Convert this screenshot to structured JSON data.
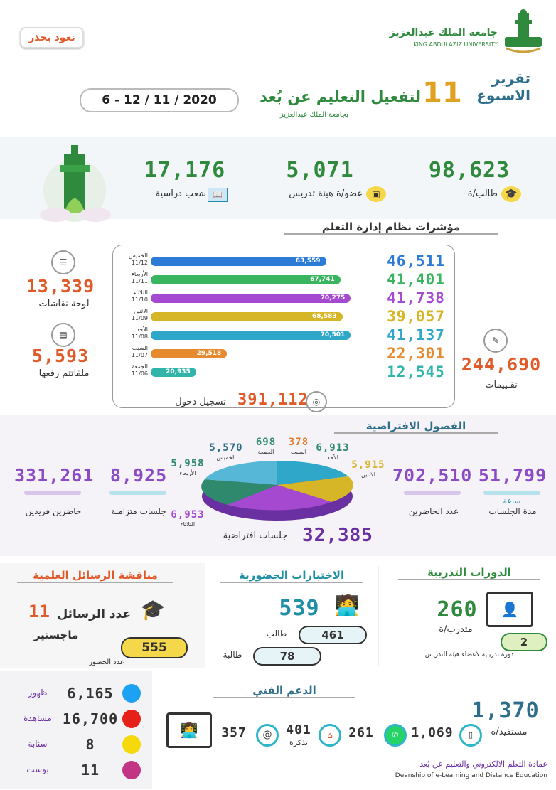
{
  "header": {
    "logo_ar": "جامعة الملك عبدالعزيز",
    "logo_en": "KING ABDULAZIZ UNIVERSITY",
    "slogan": "نعود بحذر"
  },
  "title": {
    "report": "تقرير",
    "week": "الاسبوع",
    "num": "11",
    "subject": "لتفعيل التعليم عن بُعد",
    "sub": "بجامعة الملك عبدالعزيز",
    "date": "6 - 12 / 11 / 2020"
  },
  "top_stats": [
    {
      "value": "98,623",
      "label": "طالب/ة",
      "icon": "graduation-cap-icon"
    },
    {
      "value": "5,071",
      "label": "عضو/ة هيئة تدريس",
      "icon": "teacher-board-icon"
    },
    {
      "value": "17,176",
      "label": "شعب دراسية",
      "icon": "book-icon"
    }
  ],
  "lms": {
    "title": "مؤشرات نظام إدارة التعلم",
    "rows": [
      {
        "day": "الخميس",
        "date": "11/12",
        "bar": "63,559",
        "right": "46,511",
        "color": "#2c7bd6",
        "frac": 0.85
      },
      {
        "day": "الأربعاء",
        "date": "11/11",
        "bar": "67,741",
        "right": "41,401",
        "color": "#38b55e",
        "frac": 0.92
      },
      {
        "day": "الثلاثاء",
        "date": "11/10",
        "bar": "70,275",
        "right": "41,738",
        "color": "#a54ad0",
        "frac": 0.97
      },
      {
        "day": "الاثنين",
        "date": "11/09",
        "bar": "68,583",
        "right": "39,057",
        "color": "#d6b526",
        "frac": 0.93
      },
      {
        "day": "الأحد",
        "date": "11/08",
        "bar": "70,501",
        "right": "41,137",
        "color": "#2fa7c9",
        "frac": 0.97
      },
      {
        "day": "السبت",
        "date": "11/07",
        "bar": "29,518",
        "right": "22,301",
        "color": "#e58a2f",
        "frac": 0.37
      },
      {
        "day": "الجمعة",
        "date": "11/06",
        "bar": "20,935",
        "right": "12,545",
        "color": "#31b5a8",
        "frac": 0.22
      }
    ],
    "login_value": "391,112",
    "login_label": "تسجيل دخول",
    "ratings_value": "244,690",
    "ratings_label": "تقـييمات",
    "boards_value": "13,339",
    "boards_label": "لوحة نقاشات",
    "files_value": "5,593",
    "files_label": "ملفاتتم رفعها"
  },
  "virtual": {
    "title": "الفصول الافتراضية",
    "sessions_total": "32,385",
    "sessions_label": "جلسات افتراضية",
    "duration_value": "51,799",
    "duration_unit": "ساعة",
    "duration_label": "مدة الجلسات",
    "attendees_value": "702,510",
    "attendees_label": "عدد الحاضرين",
    "sync_value": "8,925",
    "sync_label": "جلسات متزامنة",
    "unique_value": "331,261",
    "unique_label": "حاضرين فريدين",
    "days": [
      {
        "day": "الاثنين",
        "value": "5,915"
      },
      {
        "day": "الأحد",
        "value": "6,913"
      },
      {
        "day": "السبت",
        "value": "378"
      },
      {
        "day": "الجمعة",
        "value": "698"
      },
      {
        "day": "الخميس",
        "value": "5,570"
      },
      {
        "day": "الأربعاء",
        "value": "5,958"
      },
      {
        "day": "الثلاثاء",
        "value": "6,953"
      }
    ]
  },
  "training": {
    "title": "الدورات التدريبة",
    "value": "260",
    "label": "متدرب/ة",
    "courses": "2",
    "courses_label": "دورة تدريبية لاعضاء هيئة التدريس"
  },
  "exams": {
    "title": "الاختبارات الحضورية",
    "value": "539",
    "male": "461",
    "male_label": "طالب",
    "female": "78",
    "female_label": "طالبة"
  },
  "thesis": {
    "title": "مناقشة الرسائل العلمية",
    "count_label": "عدد الرسائل",
    "count": "11",
    "type": "ماجستير",
    "attend": "555",
    "attend_label": "عدد الحضور"
  },
  "social": [
    {
      "value": "6,165",
      "label": "ظهور",
      "icon": "twitter-icon",
      "color": "#1da1f2"
    },
    {
      "value": "16,700",
      "label": "مشاهدة",
      "icon": "youtube-icon",
      "color": "#e62117"
    },
    {
      "value": "8",
      "label": "سنابة",
      "icon": "snapchat-icon",
      "color": "#f5d90a"
    },
    {
      "value": "11",
      "label": "بوست",
      "icon": "instagram-icon",
      "color": "#c13584"
    }
  ],
  "support": {
    "title": "الدعم الفني",
    "beneficiaries": "1,370",
    "beneficiaries_label": "مستفيد/ة",
    "phone": "1,069",
    "whatsapp": "261",
    "ticket": "401",
    "ticket_label": "تذكرة",
    "email": "357"
  },
  "footer": {
    "ar": "عمادة التعلم الالكتروني والتعليم عن بُعد",
    "en": "Deanship of e-Learning and Distance Education"
  }
}
